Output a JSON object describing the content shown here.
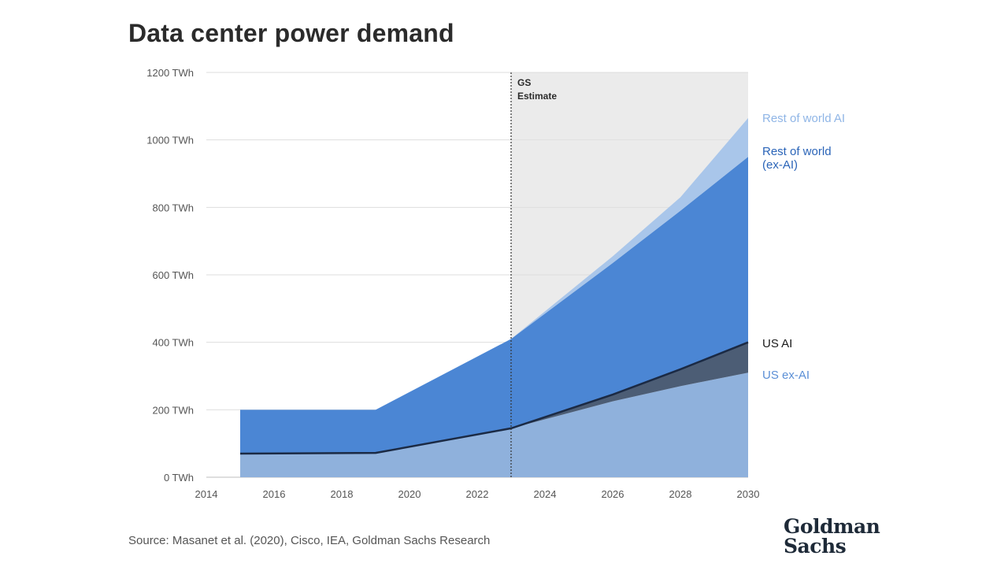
{
  "title": "Data center power demand",
  "source": "Source: Masanet et al. (2020), Cisco, IEA, Goldman Sachs Research",
  "logo": {
    "line1": "Goldman",
    "line2": "Sachs"
  },
  "chart_data": {
    "type": "area",
    "stacked": true,
    "x": [
      2015,
      2019,
      2023,
      2026,
      2028,
      2030
    ],
    "xlim": [
      2014,
      2030
    ],
    "x_ticks": [
      "2014",
      "2016",
      "2018",
      "2020",
      "2022",
      "2024",
      "2026",
      "2028",
      "2030"
    ],
    "ylim": [
      0,
      1200
    ],
    "y_ticks": [
      "0 TWh",
      "200 TWh",
      "400 TWh",
      "600 TWh",
      "800 TWh",
      "1000 TWh",
      "1200 TWh"
    ],
    "estimate_start": 2023,
    "estimate_label": [
      "GS",
      "Estimate"
    ],
    "grid": true,
    "legend": "right",
    "series": [
      {
        "name": "US ex-AI",
        "values": [
          70,
          72,
          145,
          225,
          270,
          310
        ],
        "color": "#8fb1dc",
        "label_color": "#5b8fd6"
      },
      {
        "name": "US AI",
        "values": [
          0,
          0,
          0,
          20,
          50,
          90
        ],
        "color": "#4c5d75",
        "label_color": "#1a1a1a"
      },
      {
        "name": "Rest of world (ex-AI)",
        "values": [
          130,
          128,
          265,
          390,
          470,
          550
        ],
        "color": "#4b86d4",
        "label_color": "#2a64b8"
      },
      {
        "name": "Rest of world AI",
        "values": [
          0,
          0,
          0,
          20,
          40,
          115
        ],
        "color": "#a9c6ea",
        "label_color": "#8fb5e6"
      }
    ],
    "labels": {
      "rest_ai": "Rest of world AI",
      "rest_exai_1": "Rest of world",
      "rest_exai_2": "(ex-AI)",
      "us_ai": "US AI",
      "us_exai": "US ex-AI"
    }
  }
}
